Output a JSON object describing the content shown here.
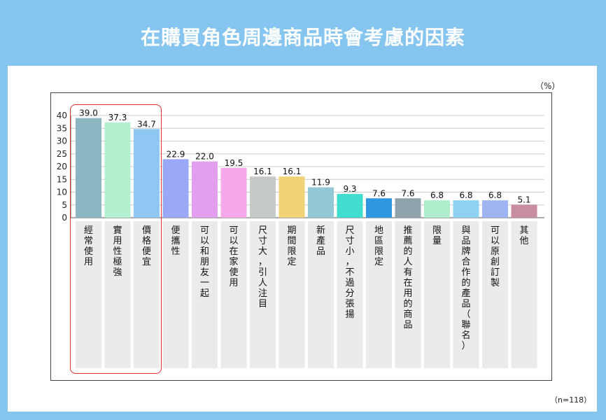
{
  "title": "在購買角色周邊商品時會考慮的因素",
  "unit_label": "（%）",
  "sample_note": "（n=118）",
  "chart_data": {
    "type": "bar",
    "title": "在購買角色周邊商品時會考慮的因素",
    "ylabel": "（%）",
    "ylim": [
      0,
      40
    ],
    "yticks": [
      0,
      5,
      10,
      15,
      20,
      25,
      30,
      35,
      40
    ],
    "grid": true,
    "highlight_group": [
      0,
      1,
      2
    ],
    "categories": [
      "經常使用",
      "實用性極強",
      "價格便宜",
      "便攜性",
      "可以和朋友一起",
      "可以在家使用",
      "尺寸大，引人注目",
      "期間限定",
      "新產品",
      "尺寸小，不過分張揚",
      "地區限定",
      "推薦的人有在用的商品",
      "限量",
      "與品牌合作的產品（聯名）",
      "可以原創訂製",
      "其他"
    ],
    "values": [
      39.0,
      37.3,
      34.7,
      22.9,
      22.0,
      19.5,
      16.1,
      16.1,
      11.9,
      9.3,
      7.6,
      7.6,
      6.8,
      6.8,
      6.8,
      5.1
    ],
    "value_labels": [
      "39.0",
      "37.3",
      "34.7",
      "22.9",
      "22.0",
      "19.5",
      "16.1",
      "16.1",
      "11.9",
      "9.3",
      "7.6",
      "7.6",
      "6.8",
      "6.8",
      "6.8",
      "5.1"
    ],
    "colors": [
      "#8ab7c2",
      "#b2f0cf",
      "#8ec8f2",
      "#9aa9f5",
      "#e39ef0",
      "#f5a8ec",
      "#c6cac6",
      "#f1d277",
      "#93c8d6",
      "#40ddd0",
      "#2f97e0",
      "#8fa3ad",
      "#aeeecc",
      "#8ed1f0",
      "#9fb5f2",
      "#c98da0"
    ]
  }
}
